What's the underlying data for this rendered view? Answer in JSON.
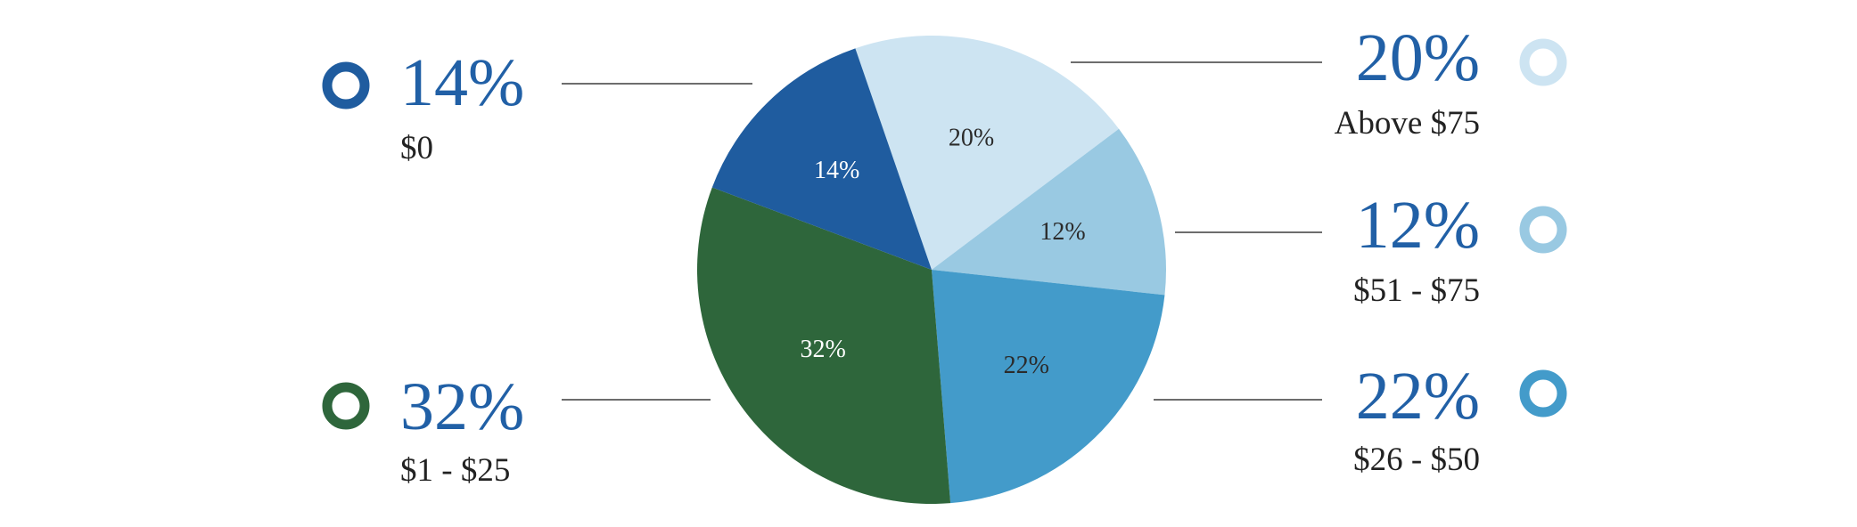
{
  "chart_data": {
    "type": "pie",
    "title": "",
    "start_angle_deg": -19,
    "direction": "clockwise",
    "slices": [
      {
        "category": "Above $75",
        "value": 20,
        "label": "20%",
        "color": "#cde4f2",
        "label_color": "#2b2b2b",
        "side": "right"
      },
      {
        "category": "$51 - $75",
        "value": 12,
        "label": "12%",
        "color": "#99c9e2",
        "label_color": "#2b2b2b",
        "side": "right"
      },
      {
        "category": "$26 - $50",
        "value": 22,
        "label": "22%",
        "color": "#439bca",
        "label_color": "#2b2b2b",
        "side": "right"
      },
      {
        "category": "$1 - $25",
        "value": 32,
        "label": "32%",
        "color": "#2e663b",
        "label_color": "#ffffff",
        "side": "left"
      },
      {
        "category": "$0",
        "value": 14,
        "label": "14%",
        "color": "#1f5c9f",
        "label_color": "#ffffff",
        "side": "left"
      }
    ]
  },
  "colors": {
    "percent_text": "#2160a6",
    "category_text": "#222222",
    "leader_line": "#6d6d6d"
  }
}
